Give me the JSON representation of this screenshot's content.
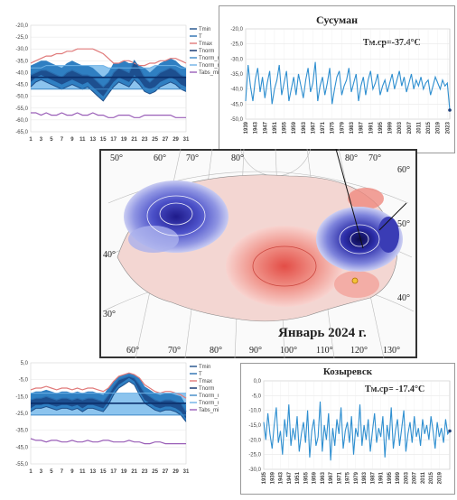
{
  "panels": {
    "daily_top": {
      "y_ticks": [
        "-20,0",
        "-25,0",
        "-30,0",
        "-35,0",
        "-40,0",
        "-45,0",
        "-50,0",
        "-55,0",
        "-60,0",
        "-65,0"
      ],
      "x_ticks": [
        "1",
        "3",
        "5",
        "7",
        "9",
        "11",
        "13",
        "15",
        "17",
        "19",
        "21",
        "23",
        "25",
        "27",
        "29",
        "31"
      ],
      "legend": [
        "Tmin",
        "T",
        "Tmax",
        "Tnorm",
        "Tnorm_min",
        "Tnorm_max",
        "Tabs_min"
      ]
    },
    "daily_bottom": {
      "y_ticks": [
        "5,0",
        "-5,0",
        "-15,0",
        "-25,0",
        "-35,0",
        "-45,0",
        "-55,0"
      ],
      "x_ticks": [
        "1",
        "3",
        "5",
        "7",
        "9",
        "11",
        "13",
        "15",
        "17",
        "19",
        "21",
        "23",
        "25",
        "27",
        "29",
        "31"
      ],
      "legend": [
        "Tmin",
        "T",
        "Tmax",
        "Tnorm",
        "Tnorm_min",
        "Tnorm_max",
        "Tabs_min"
      ]
    },
    "susuman": {
      "title": "Сусуман",
      "annotation": "Tм.ср=-37.4°C",
      "y_ticks": [
        "-20,0",
        "-25,0",
        "-30,0",
        "-35,0",
        "-40,0",
        "-45,0",
        "-50,0"
      ],
      "x_ticks": [
        "1939",
        "1943",
        "1947",
        "1951",
        "1955",
        "1959",
        "1963",
        "1967",
        "1971",
        "1975",
        "1979",
        "1983",
        "1987",
        "1991",
        "1995",
        "1999",
        "2003",
        "2007",
        "2011",
        "2015",
        "2019",
        "2023"
      ]
    },
    "kozyrevsk": {
      "title": "Козыревск",
      "annotation": "Tм.ср= -17.4°C",
      "y_ticks": [
        "0,0",
        "-5,0",
        "-10,0",
        "-15,0",
        "-20,0",
        "-25,0",
        "-30,0"
      ],
      "x_ticks": [
        "1935",
        "1939",
        "1943",
        "1947",
        "1951",
        "1955",
        "1959",
        "1963",
        "1967",
        "1971",
        "1975",
        "1979",
        "1983",
        "1987",
        "1991",
        "1995",
        "1999",
        "2003",
        "2007",
        "2011",
        "2015",
        "2019"
      ]
    },
    "map": {
      "caption": "Январь 2024 г.",
      "top_lon": [
        "50°",
        "60°",
        "70°",
        "80°",
        "80°",
        "70°"
      ],
      "bottom_lon": [
        "60°",
        "70°",
        "80°",
        "90°",
        "100°",
        "110°",
        "120°",
        "130°"
      ],
      "left_lat": [
        "40°",
        "30°"
      ],
      "right_lat": [
        "60°",
        "50°",
        "40°"
      ]
    }
  },
  "chart_data": [
    {
      "type": "line",
      "panel": "daily_top",
      "x": [
        1,
        2,
        3,
        4,
        5,
        6,
        7,
        8,
        9,
        10,
        11,
        12,
        13,
        14,
        15,
        16,
        17,
        18,
        19,
        20,
        21,
        22,
        23,
        24,
        25,
        26,
        27,
        28,
        29,
        30,
        31
      ],
      "ylim": [
        -65,
        -20
      ],
      "series": [
        {
          "name": "Tmax",
          "values": [
            -36,
            -35,
            -34,
            -33,
            -33,
            -32,
            -32,
            -31,
            -31,
            -30,
            -30,
            -30,
            -30,
            -31,
            -32,
            -34,
            -36,
            -36,
            -35,
            -35,
            -36,
            -37,
            -37,
            -36,
            -36,
            -35,
            -35,
            -34,
            -34,
            -35,
            -36
          ]
        },
        {
          "name": "T",
          "values": [
            -41,
            -40,
            -39,
            -39,
            -40,
            -41,
            -42,
            -40,
            -39,
            -40,
            -41,
            -41,
            -42,
            -44,
            -46,
            -44,
            -40,
            -38,
            -39,
            -40,
            -35,
            -38,
            -42,
            -44,
            -42,
            -40,
            -39,
            -38,
            -39,
            -41,
            -42
          ]
        },
        {
          "name": "Tmin",
          "values": [
            -46,
            -44,
            -43,
            -44,
            -45,
            -46,
            -47,
            -46,
            -45,
            -46,
            -47,
            -46,
            -48,
            -50,
            -52,
            -49,
            -46,
            -44,
            -45,
            -46,
            -43,
            -45,
            -48,
            -49,
            -48,
            -46,
            -45,
            -44,
            -45,
            -47,
            -48
          ]
        },
        {
          "name": "Tnorm",
          "values": [
            -42,
            -42,
            -42,
            -42,
            -42,
            -42,
            -42,
            -42,
            -42,
            -42,
            -42,
            -42,
            -42,
            -42,
            -42,
            -42,
            -42,
            -42,
            -42,
            -42,
            -42,
            -42,
            -42,
            -42,
            -42,
            -42,
            -42,
            -42,
            -42,
            -42,
            -42
          ]
        },
        {
          "name": "Tnorm_max",
          "values": [
            -38,
            -38,
            -38,
            -37,
            -37,
            -37,
            -37,
            -37,
            -37,
            -37,
            -37,
            -37,
            -37,
            -37,
            -37,
            -38,
            -38,
            -38,
            -38,
            -38,
            -38,
            -38,
            -38,
            -38,
            -37,
            -37,
            -37,
            -37,
            -37,
            -38,
            -38
          ]
        },
        {
          "name": "Tnorm_min",
          "values": [
            -47,
            -47,
            -47,
            -47,
            -47,
            -47,
            -47,
            -47,
            -47,
            -47,
            -47,
            -47,
            -47,
            -47,
            -47,
            -47,
            -47,
            -47,
            -47,
            -47,
            -47,
            -47,
            -47,
            -47,
            -47,
            -47,
            -47,
            -47,
            -47,
            -47,
            -47
          ]
        },
        {
          "name": "Tabs_min",
          "values": [
            -57,
            -57,
            -58,
            -57,
            -58,
            -58,
            -57,
            -58,
            -58,
            -57,
            -58,
            -58,
            -57,
            -58,
            -58,
            -59,
            -59,
            -58,
            -58,
            -58,
            -59,
            -59,
            -58,
            -58,
            -58,
            -58,
            -58,
            -58,
            -59,
            -59,
            -59
          ]
        }
      ]
    },
    {
      "type": "line",
      "panel": "susuman",
      "x": [
        1939,
        1940,
        1941,
        1942,
        1943,
        1944,
        1945,
        1946,
        1947,
        1948,
        1949,
        1950,
        1951,
        1952,
        1953,
        1954,
        1955,
        1956,
        1957,
        1958,
        1959,
        1960,
        1961,
        1962,
        1963,
        1964,
        1965,
        1966,
        1967,
        1968,
        1969,
        1970,
        1971,
        1972,
        1973,
        1974,
        1975,
        1976,
        1977,
        1978,
        1979,
        1980,
        1981,
        1982,
        1983,
        1984,
        1985,
        1986,
        1987,
        1988,
        1989,
        1990,
        1991,
        1992,
        1993,
        1994,
        1995,
        1996,
        1997,
        1998,
        1999,
        2000,
        2001,
        2002,
        2003,
        2004,
        2005,
        2006,
        2007,
        2008,
        2009,
        2010,
        2011,
        2012,
        2013,
        2014,
        2015,
        2016,
        2017,
        2018,
        2019,
        2020,
        2021,
        2022,
        2023,
        2024
      ],
      "ylim": [
        -50,
        -20
      ],
      "series": [
        {
          "name": "T",
          "values": [
            -44,
            -32,
            -39,
            -44,
            -37,
            -33,
            -41,
            -36,
            -43,
            -38,
            -34,
            -45,
            -40,
            -37,
            -32,
            -42,
            -38,
            -34,
            -44,
            -40,
            -36,
            -42,
            -35,
            -39,
            -43,
            -37,
            -33,
            -41,
            -38,
            -31,
            -44,
            -39,
            -36,
            -42,
            -38,
            -33,
            -45,
            -40,
            -36,
            -34,
            -42,
            -39,
            -37,
            -33,
            -41,
            -38,
            -35,
            -44,
            -39,
            -36,
            -42,
            -37,
            -34,
            -40,
            -38,
            -35,
            -42,
            -39,
            -37,
            -41,
            -38,
            -35,
            -40,
            -37,
            -34,
            -39,
            -36,
            -41,
            -38,
            -35,
            -40,
            -37,
            -39,
            -36,
            -40,
            -38,
            -37,
            -42,
            -39,
            -36,
            -38,
            -40,
            -37,
            -39,
            -38,
            -47
          ]
        }
      ]
    },
    {
      "type": "line",
      "panel": "daily_bottom",
      "x": [
        1,
        2,
        3,
        4,
        5,
        6,
        7,
        8,
        9,
        10,
        11,
        12,
        13,
        14,
        15,
        16,
        17,
        18,
        19,
        20,
        21,
        22,
        23,
        24,
        25,
        26,
        27,
        28,
        29,
        30,
        31
      ],
      "ylim": [
        -55,
        5
      ],
      "series": [
        {
          "name": "Tmax",
          "values": [
            -11,
            -10,
            -10,
            -9,
            -10,
            -11,
            -10,
            -10,
            -11,
            -10,
            -11,
            -10,
            -10,
            -11,
            -12,
            -10,
            -6,
            -3,
            -2,
            -1,
            -2,
            -4,
            -8,
            -10,
            -12,
            -13,
            -12,
            -12,
            -13,
            -14,
            -16
          ]
        },
        {
          "name": "T",
          "values": [
            -17,
            -16,
            -16,
            -15,
            -16,
            -17,
            -16,
            -16,
            -17,
            -16,
            -17,
            -16,
            -16,
            -17,
            -18,
            -14,
            -9,
            -5,
            -4,
            -3,
            -4,
            -8,
            -13,
            -15,
            -17,
            -18,
            -17,
            -17,
            -18,
            -19,
            -24
          ]
        },
        {
          "name": "Tmin",
          "values": [
            -24,
            -22,
            -22,
            -21,
            -22,
            -23,
            -22,
            -22,
            -23,
            -22,
            -24,
            -22,
            -22,
            -23,
            -24,
            -20,
            -14,
            -10,
            -8,
            -6,
            -8,
            -14,
            -19,
            -21,
            -23,
            -24,
            -23,
            -23,
            -24,
            -26,
            -30
          ]
        },
        {
          "name": "Tnorm",
          "values": [
            -19,
            -19,
            -19,
            -19,
            -19,
            -19,
            -19,
            -19,
            -19,
            -19,
            -19,
            -19,
            -19,
            -19,
            -19,
            -19,
            -19,
            -19,
            -19,
            -19,
            -19,
            -19,
            -19,
            -19,
            -19,
            -19,
            -19,
            -19,
            -19,
            -19,
            -19
          ]
        },
        {
          "name": "Tnorm_max",
          "values": [
            -13,
            -13,
            -13,
            -13,
            -13,
            -13,
            -13,
            -13,
            -13,
            -13,
            -13,
            -13,
            -13,
            -13,
            -13,
            -13,
            -13,
            -13,
            -13,
            -13,
            -13,
            -13,
            -13,
            -13,
            -13,
            -13,
            -13,
            -13,
            -13,
            -13,
            -13
          ]
        },
        {
          "name": "Tnorm_min",
          "values": [
            -26,
            -26,
            -26,
            -26,
            -26,
            -26,
            -26,
            -26,
            -26,
            -26,
            -26,
            -26,
            -26,
            -26,
            -26,
            -26,
            -26,
            -26,
            -26,
            -26,
            -26,
            -26,
            -26,
            -26,
            -26,
            -26,
            -26,
            -26,
            -26,
            -26,
            -26
          ]
        },
        {
          "name": "Tabs_min",
          "values": [
            -40,
            -41,
            -41,
            -42,
            -41,
            -41,
            -42,
            -42,
            -41,
            -42,
            -42,
            -41,
            -42,
            -42,
            -41,
            -41,
            -42,
            -42,
            -42,
            -41,
            -42,
            -42,
            -43,
            -43,
            -42,
            -42,
            -43,
            -43,
            -43,
            -43,
            -43
          ]
        }
      ]
    },
    {
      "type": "line",
      "panel": "kozyrevsk",
      "x": [
        1935,
        1936,
        1937,
        1938,
        1939,
        1940,
        1941,
        1942,
        1943,
        1944,
        1945,
        1946,
        1947,
        1948,
        1949,
        1950,
        1951,
        1952,
        1953,
        1954,
        1955,
        1956,
        1957,
        1958,
        1959,
        1960,
        1961,
        1962,
        1963,
        1964,
        1965,
        1966,
        1967,
        1968,
        1969,
        1970,
        1971,
        1972,
        1973,
        1974,
        1975,
        1976,
        1977,
        1978,
        1979,
        1980,
        1981,
        1982,
        1983,
        1984,
        1985,
        1986,
        1987,
        1988,
        1989,
        1990,
        1991,
        1992,
        1993,
        1994,
        1995,
        1996,
        1997,
        1998,
        1999,
        2000,
        2001,
        2002,
        2003,
        2004,
        2005,
        2006,
        2007,
        2008,
        2009,
        2010,
        2011,
        2012,
        2013,
        2014,
        2015,
        2016,
        2017,
        2018,
        2019,
        2020,
        2021,
        2022,
        2023,
        2024
      ],
      "ylim": [
        -30,
        0
      ],
      "series": [
        {
          "name": "T",
          "values": [
            -14,
            -20,
            -11,
            -18,
            -23,
            -15,
            -9,
            -21,
            -17,
            -25,
            -13,
            -19,
            -8,
            -22,
            -16,
            -20,
            -12,
            -24,
            -18,
            -14,
            -21,
            -10,
            -26,
            -17,
            -13,
            -22,
            -19,
            -7,
            -24,
            -15,
            -20,
            -11,
            -27,
            -16,
            -22,
            -13,
            -18,
            -9,
            -23,
            -17,
            -14,
            -21,
            -12,
            -25,
            -16,
            -19,
            -8,
            -22,
            -15,
            -20,
            -13,
            -24,
            -17,
            -11,
            -21,
            -16,
            -19,
            -12,
            -26,
            -15,
            -20,
            -9,
            -23,
            -17,
            -13,
            -22,
            -16,
            -10,
            -24,
            -18,
            -14,
            -21,
            -12,
            -19,
            -16,
            -22,
            -13,
            -18,
            -15,
            -20,
            -12,
            -17,
            -23,
            -14,
            -19,
            -16,
            -21,
            -13,
            -18,
            -17
          ]
        }
      ]
    }
  ]
}
